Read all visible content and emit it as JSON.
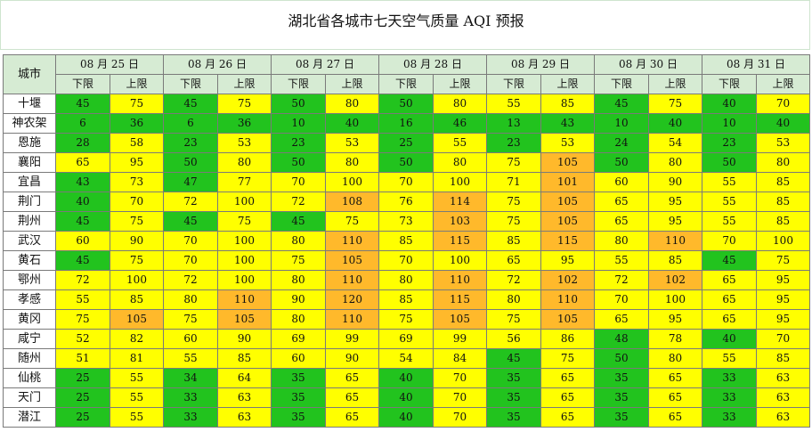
{
  "title": "湖北省各城市七天空气质量 AQI 预报",
  "city_header": "城市",
  "low_label": "下限",
  "high_label": "上限",
  "dates": [
    "08 月 25 日",
    "08 月 26 日",
    "08 月 27 日",
    "08 月 28 日",
    "08 月 29 日",
    "08 月 30 日",
    "08 月 31 日"
  ],
  "level_colors": {
    "good": "#22c31e",
    "moderate": "#ffff00",
    "light_pollution": "#ffb92b"
  },
  "rows": [
    {
      "city": "十堰",
      "values": [
        "45",
        "75",
        "45",
        "75",
        "50",
        "80",
        "50",
        "80",
        "55",
        "85",
        "45",
        "75",
        "40",
        "70"
      ]
    },
    {
      "city": "神农架",
      "values": [
        "6",
        "36",
        "6",
        "36",
        "10",
        "40",
        "16",
        "46",
        "13",
        "43",
        "10",
        "40",
        "10",
        "40"
      ]
    },
    {
      "city": "恩施",
      "values": [
        "28",
        "58",
        "23",
        "53",
        "23",
        "53",
        "25",
        "55",
        "23",
        "53",
        "24",
        "54",
        "23",
        "53"
      ]
    },
    {
      "city": "襄阳",
      "values": [
        "65",
        "95",
        "50",
        "80",
        "50",
        "80",
        "50",
        "80",
        "75",
        "105",
        "50",
        "80",
        "50",
        "80"
      ]
    },
    {
      "city": "宜昌",
      "values": [
        "43",
        "73",
        "47",
        "77",
        "70",
        "100",
        "70",
        "100",
        "71",
        "101",
        "60",
        "90",
        "55",
        "85"
      ]
    },
    {
      "city": "荆门",
      "values": [
        "40",
        "70",
        "72",
        "100",
        "72",
        "108",
        "76",
        "114",
        "75",
        "105",
        "65",
        "95",
        "55",
        "85"
      ]
    },
    {
      "city": "荆州",
      "values": [
        "45",
        "75",
        "45",
        "75",
        "45",
        "75",
        "73",
        "103",
        "75",
        "105",
        "65",
        "95",
        "55",
        "85"
      ]
    },
    {
      "city": "武汉",
      "values": [
        "60",
        "90",
        "70",
        "100",
        "80",
        "110",
        "85",
        "115",
        "85",
        "115",
        "80",
        "110",
        "70",
        "100"
      ]
    },
    {
      "city": "黄石",
      "values": [
        "45",
        "75",
        "70",
        "100",
        "75",
        "105",
        "70",
        "100",
        "65",
        "95",
        "55",
        "85",
        "45",
        "75"
      ]
    },
    {
      "city": "鄂州",
      "values": [
        "72",
        "100",
        "72",
        "100",
        "80",
        "110",
        "80",
        "110",
        "72",
        "102",
        "72",
        "102",
        "65",
        "95"
      ]
    },
    {
      "city": "孝感",
      "values": [
        "55",
        "85",
        "80",
        "110",
        "90",
        "120",
        "85",
        "115",
        "80",
        "110",
        "70",
        "100",
        "65",
        "95"
      ]
    },
    {
      "city": "黄冈",
      "values": [
        "75",
        "105",
        "75",
        "105",
        "80",
        "110",
        "75",
        "105",
        "75",
        "105",
        "65",
        "95",
        "65",
        "95"
      ]
    },
    {
      "city": "咸宁",
      "values": [
        "52",
        "82",
        "60",
        "90",
        "69",
        "99",
        "69",
        "99",
        "56",
        "86",
        "48",
        "78",
        "40",
        "70"
      ]
    },
    {
      "city": "随州",
      "values": [
        "51",
        "81",
        "55",
        "85",
        "60",
        "90",
        "54",
        "84",
        "45",
        "75",
        "50",
        "80",
        "55",
        "85"
      ]
    },
    {
      "city": "仙桃",
      "values": [
        "25",
        "55",
        "34",
        "64",
        "35",
        "65",
        "40",
        "70",
        "35",
        "65",
        "35",
        "65",
        "33",
        "63"
      ]
    },
    {
      "city": "天门",
      "values": [
        "25",
        "55",
        "33",
        "63",
        "35",
        "65",
        "40",
        "70",
        "35",
        "65",
        "35",
        "65",
        "33",
        "63"
      ]
    },
    {
      "city": "潜江",
      "values": [
        "25",
        "55",
        "33",
        "63",
        "35",
        "65",
        "40",
        "70",
        "35",
        "65",
        "35",
        "65",
        "33",
        "63"
      ]
    }
  ]
}
